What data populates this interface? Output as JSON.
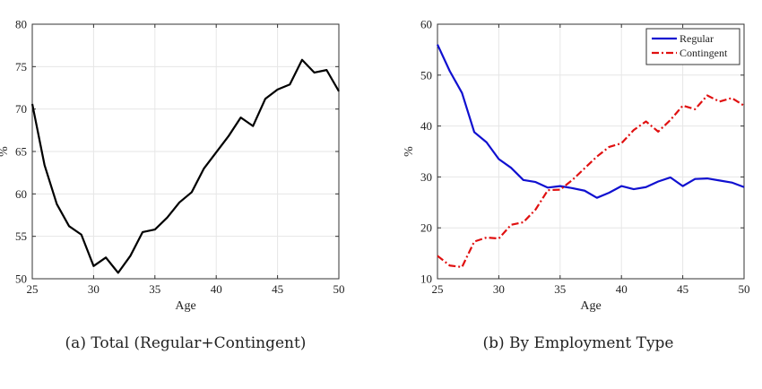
{
  "chart_data": [
    {
      "type": "line",
      "caption": "(a) Total (Regular+Contingent)",
      "xlabel": "Age",
      "ylabel": "%",
      "xlim": [
        25,
        50
      ],
      "ylim": [
        50,
        80
      ],
      "xticks": [
        25,
        30,
        35,
        40,
        45,
        50
      ],
      "yticks": [
        50,
        55,
        60,
        65,
        70,
        75,
        80
      ],
      "grid": true,
      "x": [
        25,
        26,
        27,
        28,
        29,
        30,
        31,
        32,
        33,
        34,
        35,
        36,
        37,
        38,
        39,
        40,
        41,
        42,
        43,
        44,
        45,
        46,
        47,
        48,
        49,
        50
      ],
      "series": [
        {
          "color": "#000000",
          "style": "solid",
          "values": [
            70.6,
            63.4,
            58.8,
            56.2,
            55.2,
            51.5,
            52.5,
            50.7,
            52.7,
            55.5,
            55.8,
            57.2,
            59.0,
            60.2,
            63.0,
            64.9,
            66.8,
            69.0,
            68.0,
            71.2,
            72.3,
            72.9,
            75.8,
            74.3,
            74.6,
            72.1
          ]
        }
      ]
    },
    {
      "type": "line",
      "caption": "(b) By Employment Type",
      "xlabel": "Age",
      "ylabel": "%",
      "xlim": [
        25,
        50
      ],
      "ylim": [
        10,
        60
      ],
      "xticks": [
        25,
        30,
        35,
        40,
        45,
        50
      ],
      "yticks": [
        10,
        20,
        30,
        40,
        50,
        60
      ],
      "grid": true,
      "legend": "top-right",
      "x": [
        25,
        26,
        27,
        28,
        29,
        30,
        31,
        32,
        33,
        34,
        35,
        36,
        37,
        38,
        39,
        40,
        41,
        42,
        43,
        44,
        45,
        46,
        47,
        48,
        49,
        50
      ],
      "series": [
        {
          "name": "Regular",
          "color": "#1010d0",
          "style": "solid",
          "values": [
            56.0,
            50.8,
            46.5,
            38.8,
            36.8,
            33.5,
            31.8,
            29.4,
            29.0,
            27.9,
            28.2,
            27.8,
            27.3,
            25.9,
            26.9,
            28.2,
            27.6,
            28.0,
            29.1,
            29.9,
            28.2,
            29.6,
            29.7,
            29.3,
            28.9,
            28.0
          ]
        },
        {
          "name": "Contingent",
          "color": "#e01010",
          "style": "dashdot",
          "values": [
            14.5,
            12.6,
            12.3,
            17.3,
            18.1,
            17.9,
            20.6,
            21.1,
            23.6,
            27.4,
            27.5,
            29.4,
            31.7,
            34.0,
            35.9,
            36.6,
            39.2,
            40.9,
            38.9,
            41.2,
            44.0,
            43.3,
            46.0,
            44.8,
            45.5,
            44.0
          ]
        }
      ]
    }
  ]
}
